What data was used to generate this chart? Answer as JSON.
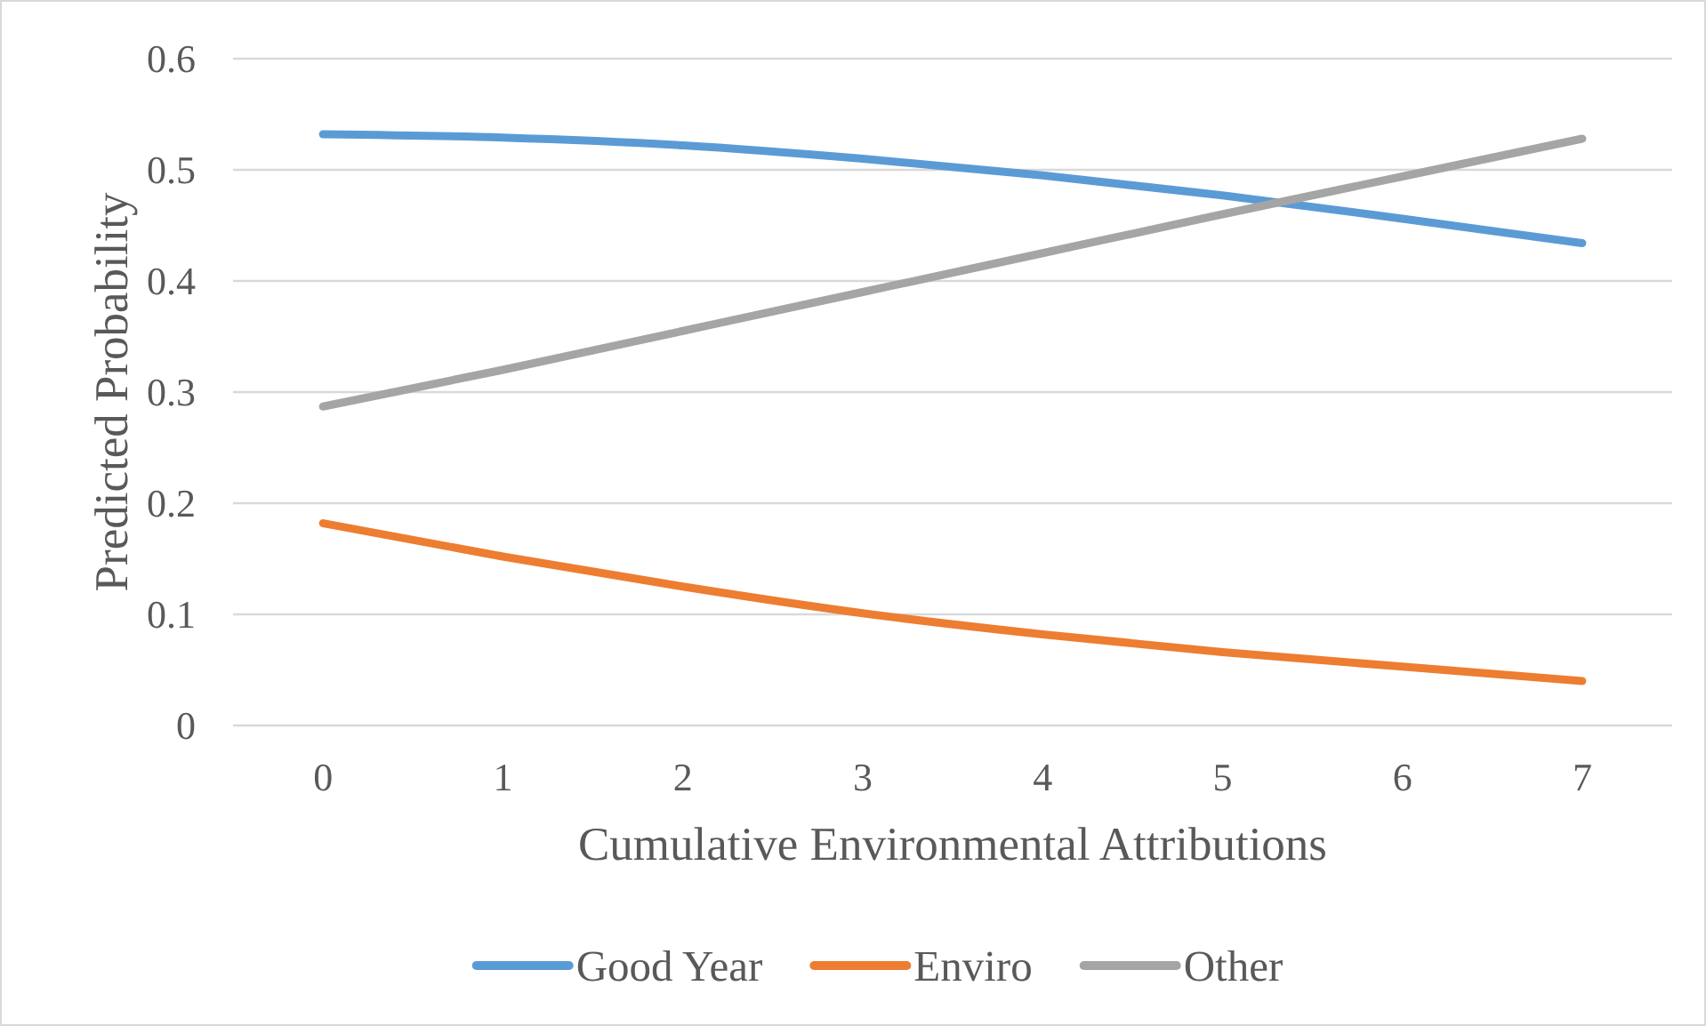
{
  "chart_data": {
    "type": "line",
    "xlabel": "Cumulative Environmental Attributions",
    "ylabel": "Predicted Probability",
    "categories": [
      "0",
      "1",
      "2",
      "3",
      "4",
      "5",
      "6",
      "7"
    ],
    "series": [
      {
        "name": "Good Year",
        "color": "#5b9bd5",
        "values": [
          0.532,
          0.529,
          0.522,
          0.51,
          0.495,
          0.477,
          0.456,
          0.434
        ]
      },
      {
        "name": "Enviro",
        "color": "#ed7d31",
        "values": [
          0.182,
          0.152,
          0.125,
          0.101,
          0.082,
          0.066,
          0.053,
          0.04
        ]
      },
      {
        "name": "Other",
        "color": "#a5a5a5",
        "values": [
          0.287,
          0.32,
          0.355,
          0.39,
          0.425,
          0.46,
          0.494,
          0.528
        ]
      }
    ],
    "ylim": [
      0,
      0.6
    ],
    "yticks": [
      0,
      0.1,
      0.2,
      0.3,
      0.4,
      0.5,
      0.6
    ],
    "grid": "y",
    "legend": "bottom",
    "marker": "none",
    "line_style": "solid"
  }
}
